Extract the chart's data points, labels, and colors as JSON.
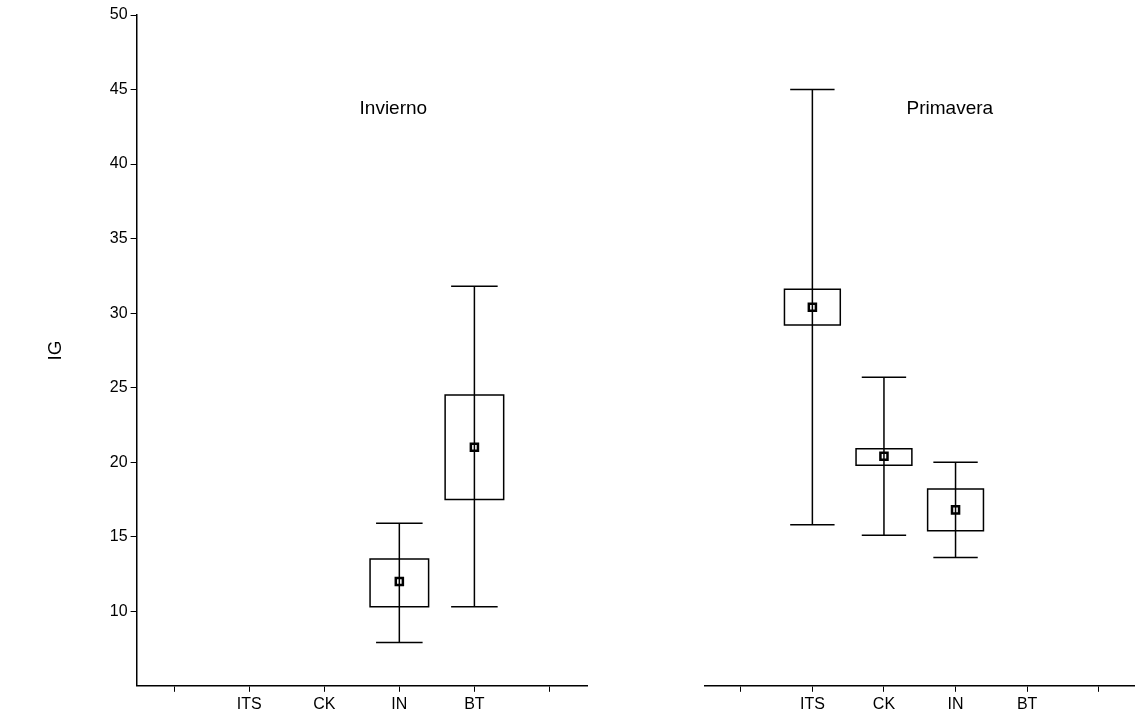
{
  "chart_data": [
    {
      "type": "box",
      "title": "Invierno",
      "ylabel": "IG",
      "categories": [
        null,
        "ITS",
        "CK",
        "IN",
        "BT",
        null
      ],
      "ylim": [
        5,
        50
      ],
      "yticks": [
        10,
        15,
        20,
        25,
        30,
        35,
        40,
        45,
        50
      ],
      "grid": false,
      "legend": false,
      "marker": "square",
      "color": "#000000",
      "boxes": [
        null,
        null,
        null,
        {
          "low": 7.9,
          "q1": 10.3,
          "median": 12.0,
          "q3": 13.5,
          "high": 15.9
        },
        {
          "low": 10.3,
          "q1": 17.5,
          "median": 21.0,
          "q3": 24.5,
          "high": 31.8
        },
        null
      ]
    },
    {
      "type": "box",
      "title": "Primavera",
      "categories": [
        null,
        "ITS",
        "CK",
        "IN",
        "BT",
        null
      ],
      "ylim": [
        5,
        50
      ],
      "yticks": [
        10,
        15,
        20,
        25,
        30,
        35,
        40,
        45,
        50
      ],
      "tick_labels": "x",
      "grid": false,
      "legend": false,
      "marker": "square",
      "color": "#000000",
      "boxes": [
        null,
        {
          "low": 15.8,
          "q1": 29.2,
          "median": 30.4,
          "q3": 31.6,
          "high": 45.0
        },
        {
          "low": 15.1,
          "q1": 19.8,
          "median": 20.4,
          "q3": 20.9,
          "high": 25.7
        },
        {
          "low": 13.6,
          "q1": 15.4,
          "median": 16.8,
          "q3": 18.2,
          "high": 20.0
        },
        null,
        null
      ]
    }
  ]
}
